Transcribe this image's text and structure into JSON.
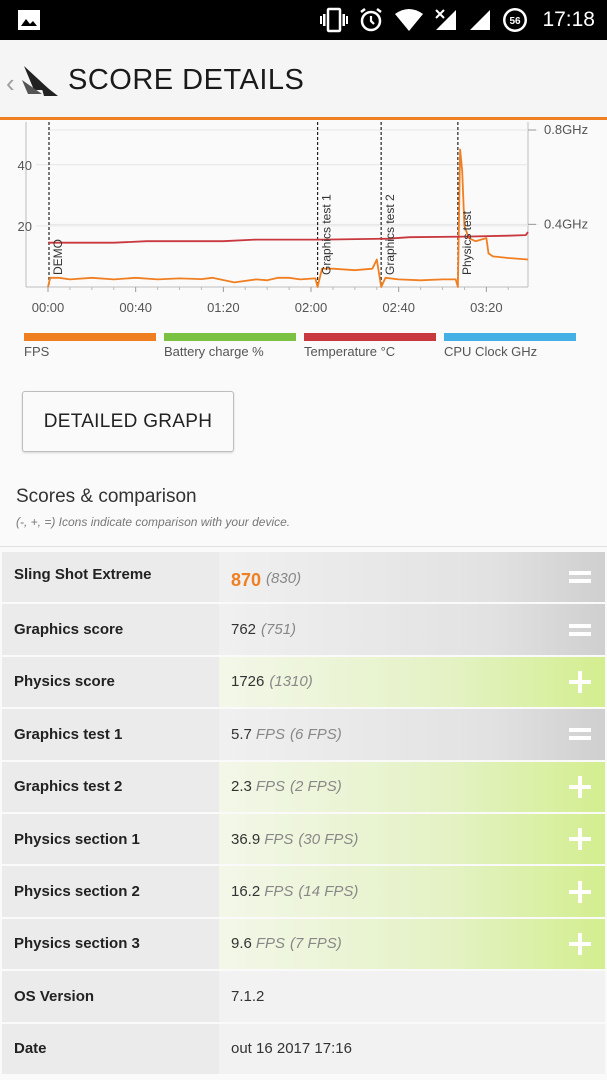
{
  "status_bar": {
    "time": "17:18",
    "battery_level": "56"
  },
  "app_bar": {
    "title": "SCORE DETAILS"
  },
  "chart_data": {
    "type": "line",
    "x_ticks": [
      "00:00",
      "00:40",
      "01:20",
      "02:00",
      "02:40",
      "03:20"
    ],
    "y_ticks_left": [
      "20",
      "40"
    ],
    "y_ticks_right": [
      "0.4GHz",
      "0.8GHz"
    ],
    "markers": [
      {
        "label": "DEMO",
        "time_sec": 0
      },
      {
        "label": "Graphics test 1",
        "time_sec": 123
      },
      {
        "label": "Graphics test 2",
        "time_sec": 152
      },
      {
        "label": "Physics test",
        "time_sec": 187
      }
    ],
    "series": [
      {
        "name": "FPS",
        "color": "#f07f22",
        "points": [
          [
            0,
            0
          ],
          [
            1,
            3
          ],
          [
            5,
            3
          ],
          [
            10,
            2.5
          ],
          [
            20,
            3
          ],
          [
            30,
            2.5
          ],
          [
            40,
            3
          ],
          [
            50,
            2.5
          ],
          [
            60,
            2.8
          ],
          [
            70,
            2.6
          ],
          [
            75,
            3
          ],
          [
            85,
            1.5
          ],
          [
            95,
            2.5
          ],
          [
            100,
            2.2
          ],
          [
            105,
            3
          ],
          [
            110,
            3
          ],
          [
            115,
            2.5
          ],
          [
            122,
            2.8
          ],
          [
            123,
            0
          ],
          [
            125,
            6
          ],
          [
            130,
            6
          ],
          [
            140,
            5.5
          ],
          [
            148,
            6
          ],
          [
            150,
            9
          ],
          [
            152,
            0
          ],
          [
            154,
            3
          ],
          [
            160,
            2.5
          ],
          [
            170,
            2.2
          ],
          [
            180,
            2.5
          ],
          [
            186,
            2.5
          ],
          [
            187,
            0
          ],
          [
            188,
            45
          ],
          [
            189,
            38
          ],
          [
            190,
            20
          ],
          [
            192,
            16
          ],
          [
            195,
            15
          ],
          [
            200,
            16
          ],
          [
            201,
            11
          ],
          [
            203,
            10
          ],
          [
            210,
            9.5
          ],
          [
            219,
            9
          ]
        ]
      },
      {
        "name": "Temperature °C",
        "color": "#c8383e",
        "points": [
          [
            0,
            14.5
          ],
          [
            30,
            14.5
          ],
          [
            45,
            15
          ],
          [
            80,
            15
          ],
          [
            95,
            15.5
          ],
          [
            125,
            15.5
          ],
          [
            155,
            15.8
          ],
          [
            165,
            16.3
          ],
          [
            190,
            16.5
          ],
          [
            210,
            16.8
          ],
          [
            218,
            17
          ],
          [
            219,
            18
          ]
        ]
      }
    ]
  },
  "legend": [
    {
      "label": "FPS",
      "color": "#f07f22"
    },
    {
      "label": "Battery charge %",
      "color": "#7cc242"
    },
    {
      "label": "Temperature °C",
      "color": "#c8383e"
    },
    {
      "label": "CPU Clock GHz",
      "color": "#45b0e6"
    }
  ],
  "detailed_graph_button": "DETAILED GRAPH",
  "scores": {
    "title": "Scores & comparison",
    "subtitle": "(-, +, =) Icons indicate comparison with your device.",
    "rows": [
      {
        "name": "Sling Shot Extreme",
        "value": "870",
        "compare": "(830)",
        "unit": "",
        "indicator": "equal"
      },
      {
        "name": "Graphics score",
        "value": "762",
        "compare": "(751)",
        "unit": "",
        "indicator": "equal"
      },
      {
        "name": "Physics score",
        "value": "1726",
        "compare": "(1310)",
        "unit": "",
        "indicator": "plus"
      },
      {
        "name": "Graphics test 1",
        "value": "5.7",
        "compare": "(6 FPS)",
        "unit": "FPS",
        "indicator": "equal"
      },
      {
        "name": "Graphics test 2",
        "value": "2.3",
        "compare": "(2 FPS)",
        "unit": "FPS",
        "indicator": "plus"
      },
      {
        "name": "Physics section 1",
        "value": "36.9",
        "compare": "(30 FPS)",
        "unit": "FPS",
        "indicator": "plus"
      },
      {
        "name": "Physics section 2",
        "value": "16.2",
        "compare": "(14 FPS)",
        "unit": "FPS",
        "indicator": "plus"
      },
      {
        "name": "Physics section 3",
        "value": "9.6",
        "compare": "(7 FPS)",
        "unit": "FPS",
        "indicator": "plus"
      },
      {
        "name": "OS Version",
        "value": "7.1.2",
        "compare": "",
        "unit": "",
        "indicator": "none"
      },
      {
        "name": "Date",
        "value": "out 16 2017 17:16",
        "compare": "",
        "unit": "",
        "indicator": "none"
      }
    ]
  }
}
